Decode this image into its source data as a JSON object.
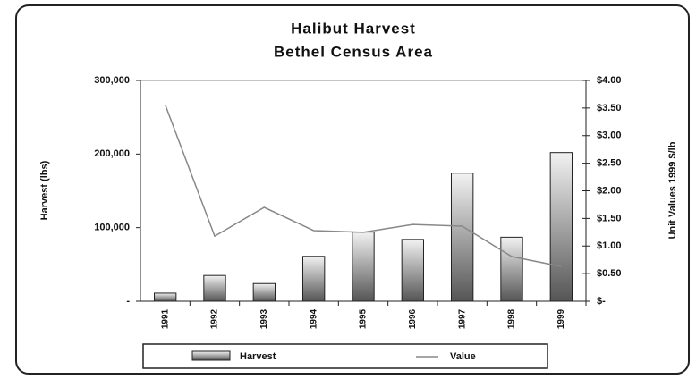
{
  "chart_data": {
    "type": "bar_line",
    "title": "Halibut Harvest",
    "subtitle": "Bethel Census Area",
    "ylabel": "Harvest (lbs)",
    "y2label": "Unit Values 1999 $/lb",
    "categories": [
      "1991",
      "1992",
      "1993",
      "1994",
      "1995",
      "1996",
      "1997",
      "1998",
      "1999"
    ],
    "series": [
      {
        "name": "Harvest",
        "type": "bar",
        "color": "#777777",
        "values": [
          11000,
          35000,
          24000,
          61000,
          94000,
          84000,
          174000,
          87000,
          202000
        ]
      },
      {
        "name": "Value",
        "type": "line",
        "axis": "y2",
        "color": "#888888",
        "values": [
          3.56,
          1.18,
          1.7,
          1.28,
          1.25,
          1.39,
          1.36,
          0.81,
          0.63
        ]
      }
    ],
    "ylim": [
      0,
      300000
    ],
    "yticks": [
      {
        "value": 0,
        "label": "-"
      },
      {
        "value": 100000,
        "label": "100,000"
      },
      {
        "value": 200000,
        "label": "200,000"
      },
      {
        "value": 300000,
        "label": "300,000"
      }
    ],
    "y2lim": [
      0,
      4
    ],
    "y2ticks": [
      {
        "value": 0,
        "label": "$-"
      },
      {
        "value": 0.5,
        "label": "$0.50"
      },
      {
        "value": 1,
        "label": "$1.00"
      },
      {
        "value": 1.5,
        "label": "$1.50"
      },
      {
        "value": 2,
        "label": "$2.00"
      },
      {
        "value": 2.5,
        "label": "$2.50"
      },
      {
        "value": 3,
        "label": "$3.00"
      },
      {
        "value": 3.5,
        "label": "$3.50"
      },
      {
        "value": 4,
        "label": "$4.00"
      }
    ]
  }
}
